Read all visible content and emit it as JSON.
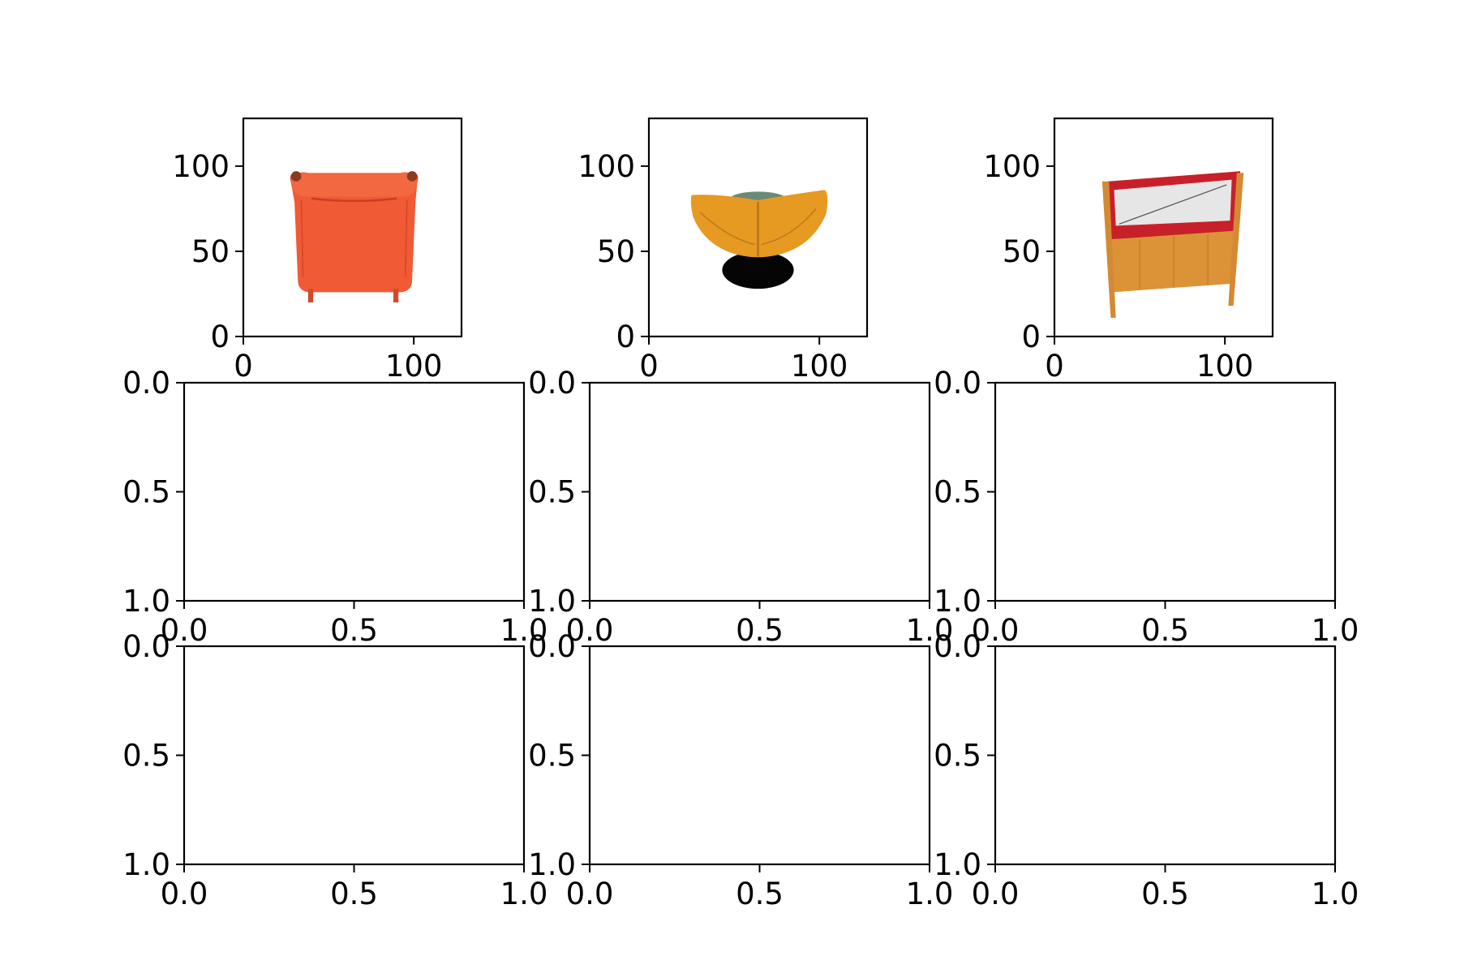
{
  "colors": {
    "axis": "#000000",
    "background": "#ffffff",
    "chair1": "#f05a35",
    "chair1_dark": "#c64020",
    "chair2": "#e69a22",
    "chair2_base": "#050505",
    "chair3_wood": "#dc9237",
    "chair3_frame": "#c8202a",
    "chair3_panel": "#e6e6e6"
  },
  "chart_data": [
    {
      "type": "image",
      "image_name": "orange-armchair-image",
      "xlim": [
        0,
        128
      ],
      "ylim": [
        128,
        0
      ],
      "xticks": [
        0,
        100
      ],
      "yticks": [
        0,
        50,
        100
      ],
      "xticklabels": [
        "0",
        "100"
      ],
      "yticklabels": [
        "0",
        "50",
        "100"
      ]
    },
    {
      "type": "image",
      "image_name": "wicker-bowl-chair-image",
      "xlim": [
        0,
        128
      ],
      "ylim": [
        128,
        0
      ],
      "xticks": [
        0,
        100
      ],
      "yticks": [
        0,
        50,
        100
      ],
      "xticklabels": [
        "0",
        "100"
      ],
      "yticklabels": [
        "0",
        "50",
        "100"
      ]
    },
    {
      "type": "image",
      "image_name": "wooden-bench-image",
      "xlim": [
        0,
        128
      ],
      "ylim": [
        128,
        0
      ],
      "xticks": [
        0,
        100
      ],
      "yticks": [
        0,
        50,
        100
      ],
      "xticklabels": [
        "0",
        "100"
      ],
      "yticklabels": [
        "0",
        "50",
        "100"
      ]
    },
    {
      "type": "empty",
      "xlim": [
        0,
        1
      ],
      "ylim": [
        0,
        1
      ],
      "xticks": [
        0,
        0.5,
        1
      ],
      "yticks": [
        0,
        0.5,
        1
      ],
      "xticklabels": [
        "0.0",
        "0.5",
        "1.0"
      ],
      "yticklabels": [
        "0.0",
        "0.5",
        "1.0"
      ]
    },
    {
      "type": "empty",
      "xlim": [
        0,
        1
      ],
      "ylim": [
        0,
        1
      ],
      "xticks": [
        0,
        0.5,
        1
      ],
      "yticks": [
        0,
        0.5,
        1
      ],
      "xticklabels": [
        "0.0",
        "0.5",
        "1.0"
      ],
      "yticklabels": [
        "0.0",
        "0.5",
        "1.0"
      ]
    },
    {
      "type": "empty",
      "xlim": [
        0,
        1
      ],
      "ylim": [
        0,
        1
      ],
      "xticks": [
        0,
        0.5,
        1
      ],
      "yticks": [
        0,
        0.5,
        1
      ],
      "xticklabels": [
        "0.0",
        "0.5",
        "1.0"
      ],
      "yticklabels": [
        "0.0",
        "0.5",
        "1.0"
      ]
    },
    {
      "type": "empty",
      "xlim": [
        0,
        1
      ],
      "ylim": [
        0,
        1
      ],
      "xticks": [
        0,
        0.5,
        1
      ],
      "yticks": [
        0,
        0.5,
        1
      ],
      "xticklabels": [
        "0.0",
        "0.5",
        "1.0"
      ],
      "yticklabels": [
        "0.0",
        "0.5",
        "1.0"
      ]
    },
    {
      "type": "empty",
      "xlim": [
        0,
        1
      ],
      "ylim": [
        0,
        1
      ],
      "xticks": [
        0,
        0.5,
        1
      ],
      "yticks": [
        0,
        0.5,
        1
      ],
      "xticklabels": [
        "0.0",
        "0.5",
        "1.0"
      ],
      "yticklabels": [
        "0.0",
        "0.5",
        "1.0"
      ]
    },
    {
      "type": "empty",
      "xlim": [
        0,
        1
      ],
      "ylim": [
        0,
        1
      ],
      "xticks": [
        0,
        0.5,
        1
      ],
      "yticks": [
        0,
        0.5,
        1
      ],
      "xticklabels": [
        "0.0",
        "0.5",
        "1.0"
      ],
      "yticklabels": [
        "0.0",
        "0.5",
        "1.0"
      ]
    }
  ]
}
